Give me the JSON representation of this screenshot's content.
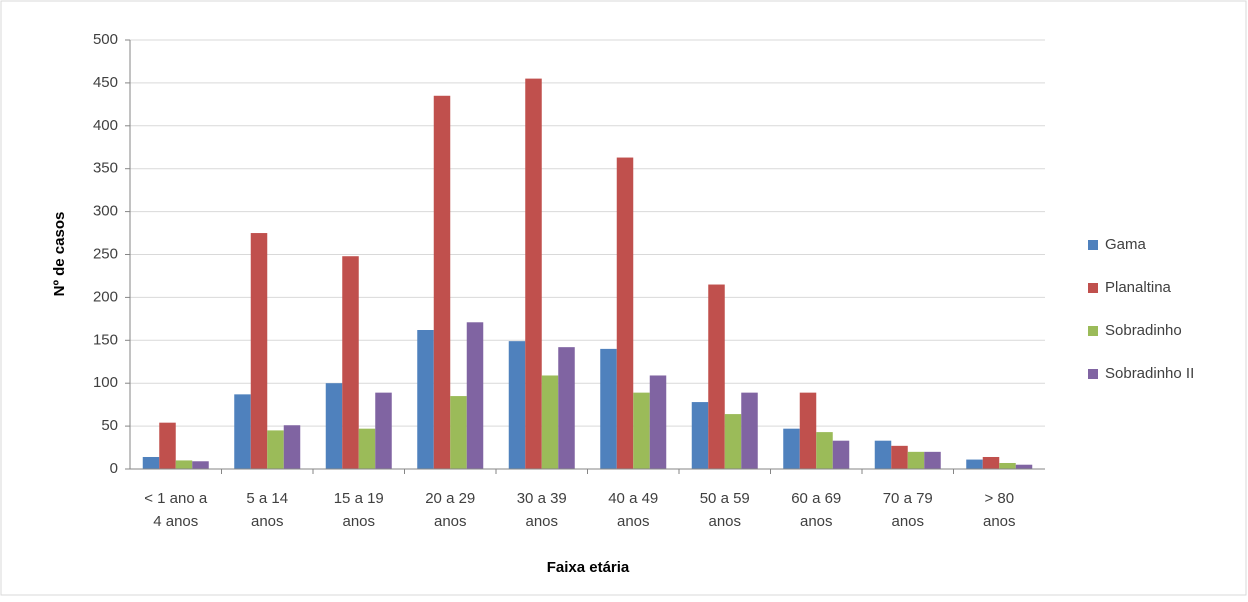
{
  "chart_data": {
    "type": "bar",
    "xlabel": "Faixa etária",
    "ylabel": "Nº de casos",
    "categories": [
      "< 1 ano a\n4 anos",
      "5 a 14\nanos",
      "15 a 19\nanos",
      "20 a 29\nanos",
      "30 a 39\nanos",
      "40 a 49\nanos",
      "50 a 59\nanos",
      "60 a 69\nanos",
      "70 a 79\nanos",
      "> 80\nanos"
    ],
    "series": [
      {
        "name": "Gama",
        "color": "#4f81bd",
        "values": [
          14,
          87,
          100,
          162,
          149,
          140,
          78,
          47,
          33,
          11
        ]
      },
      {
        "name": "Planaltina",
        "color": "#c0504d",
        "values": [
          54,
          275,
          248,
          435,
          455,
          363,
          215,
          89,
          27,
          14
        ]
      },
      {
        "name": "Sobradinho",
        "color": "#9bbb59",
        "values": [
          10,
          45,
          47,
          85,
          109,
          89,
          64,
          43,
          20,
          7
        ]
      },
      {
        "name": "Sobradinho II",
        "color": "#8064a2",
        "values": [
          9,
          51,
          89,
          171,
          142,
          109,
          89,
          33,
          20,
          5
        ]
      }
    ],
    "ylim": [
      0,
      500
    ],
    "yticks": [
      0,
      50,
      100,
      150,
      200,
      250,
      300,
      350,
      400,
      450,
      500
    ],
    "grid": true,
    "legend": "right"
  }
}
